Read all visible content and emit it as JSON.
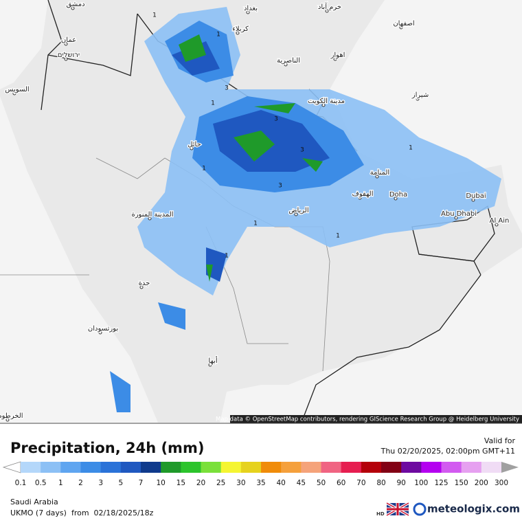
{
  "map": {
    "attribution": "Map data © OpenStreetMap contributors, rendering GIScience Research Group @ Heidelberg University",
    "cities": [
      "دمشق",
      "عمان",
      "ירושלים",
      "بغداد",
      "كربلاء",
      "خرم آباد",
      "اصفهان",
      "اهواز",
      "الناصرية",
      "مدينة الكويت",
      "شيراز",
      "السويس",
      "حائل",
      "المنامة",
      "الهفوف",
      "Doha",
      "Dubai",
      "Abu Dhabi",
      "Al Ain",
      "الرياض",
      "المدينة المنورة",
      "جدة",
      "بورتسودان",
      "أبها",
      "الخرطوم"
    ],
    "contour_labels": [
      "1",
      "1",
      "3",
      "1",
      "3",
      "3",
      "1",
      "1",
      "1",
      "1",
      "1",
      "3"
    ]
  },
  "footer": {
    "title": "Precipitation, 24h (mm)",
    "valid_label": "Valid for",
    "valid_time": "Thu 02/20/2025, 02:00pm GMT+11",
    "region": "Saudi Arabia",
    "model": "UKMO (7 days)  from  02/18/2025/18z",
    "hd": "HD",
    "brand": "meteologix.com"
  },
  "colorbar": {
    "labels": [
      "0.1",
      "0.5",
      "1",
      "2",
      "3",
      "5",
      "7",
      "10",
      "15",
      "20",
      "25",
      "30",
      "35",
      "40",
      "45",
      "50",
      "60",
      "70",
      "80",
      "90",
      "100",
      "125",
      "150",
      "200",
      "300"
    ],
    "colors": [
      "#b4d7fa",
      "#8cc0f5",
      "#5fa5f0",
      "#3c8ce6",
      "#2a72d8",
      "#1f58c0",
      "#0f3a8c",
      "#1f9a2a",
      "#2cc42c",
      "#7ae03a",
      "#f5f532",
      "#e6d21e",
      "#f08c0a",
      "#f5a03c",
      "#f5a37a",
      "#f06482",
      "#e61e50",
      "#b4000a",
      "#820014",
      "#6e0aa0",
      "#b400f0",
      "#d25af0",
      "#e6a0f0",
      "#f0dcf5"
    ],
    "under_color": "#ffffff",
    "over_color": "#a0a0a0"
  }
}
